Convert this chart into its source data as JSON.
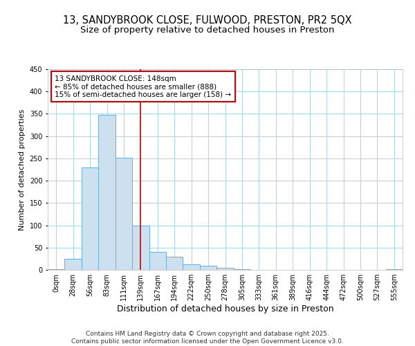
{
  "title_line1": "13, SANDYBROOK CLOSE, FULWOOD, PRESTON, PR2 5QX",
  "title_line2": "Size of property relative to detached houses in Preston",
  "xlabel": "Distribution of detached houses by size in Preston",
  "ylabel": "Number of detached properties",
  "bar_color": "#cce0f0",
  "bar_edge_color": "#6aaed6",
  "fig_background_color": "#ffffff",
  "plot_background_color": "#ffffff",
  "grid_color": "#add8e6",
  "categories": [
    "0sqm",
    "28sqm",
    "56sqm",
    "83sqm",
    "111sqm",
    "139sqm",
    "167sqm",
    "194sqm",
    "222sqm",
    "250sqm",
    "278sqm",
    "305sqm",
    "333sqm",
    "361sqm",
    "389sqm",
    "416sqm",
    "444sqm",
    "472sqm",
    "500sqm",
    "527sqm",
    "555sqm"
  ],
  "values": [
    2,
    25,
    230,
    348,
    252,
    100,
    40,
    30,
    13,
    10,
    4,
    1,
    0,
    0,
    0,
    0,
    0,
    0,
    0,
    0,
    2
  ],
  "ylim": [
    0,
    450
  ],
  "yticks": [
    0,
    50,
    100,
    150,
    200,
    250,
    300,
    350,
    400,
    450
  ],
  "vline_x": 5.0,
  "annotation_text": "13 SANDYBROOK CLOSE: 148sqm\n← 85% of detached houses are smaller (888)\n15% of semi-detached houses are larger (158) →",
  "annotation_box_color": "#ffffff",
  "annotation_border_color": "#cc0000",
  "vline_color": "#cc0000",
  "footer_text": "Contains HM Land Registry data © Crown copyright and database right 2025.\nContains public sector information licensed under the Open Government Licence v3.0.",
  "title_fontsize": 10.5,
  "subtitle_fontsize": 9.5,
  "xlabel_fontsize": 9,
  "ylabel_fontsize": 8,
  "tick_fontsize": 7,
  "annotation_fontsize": 7.5,
  "footer_fontsize": 6.5
}
